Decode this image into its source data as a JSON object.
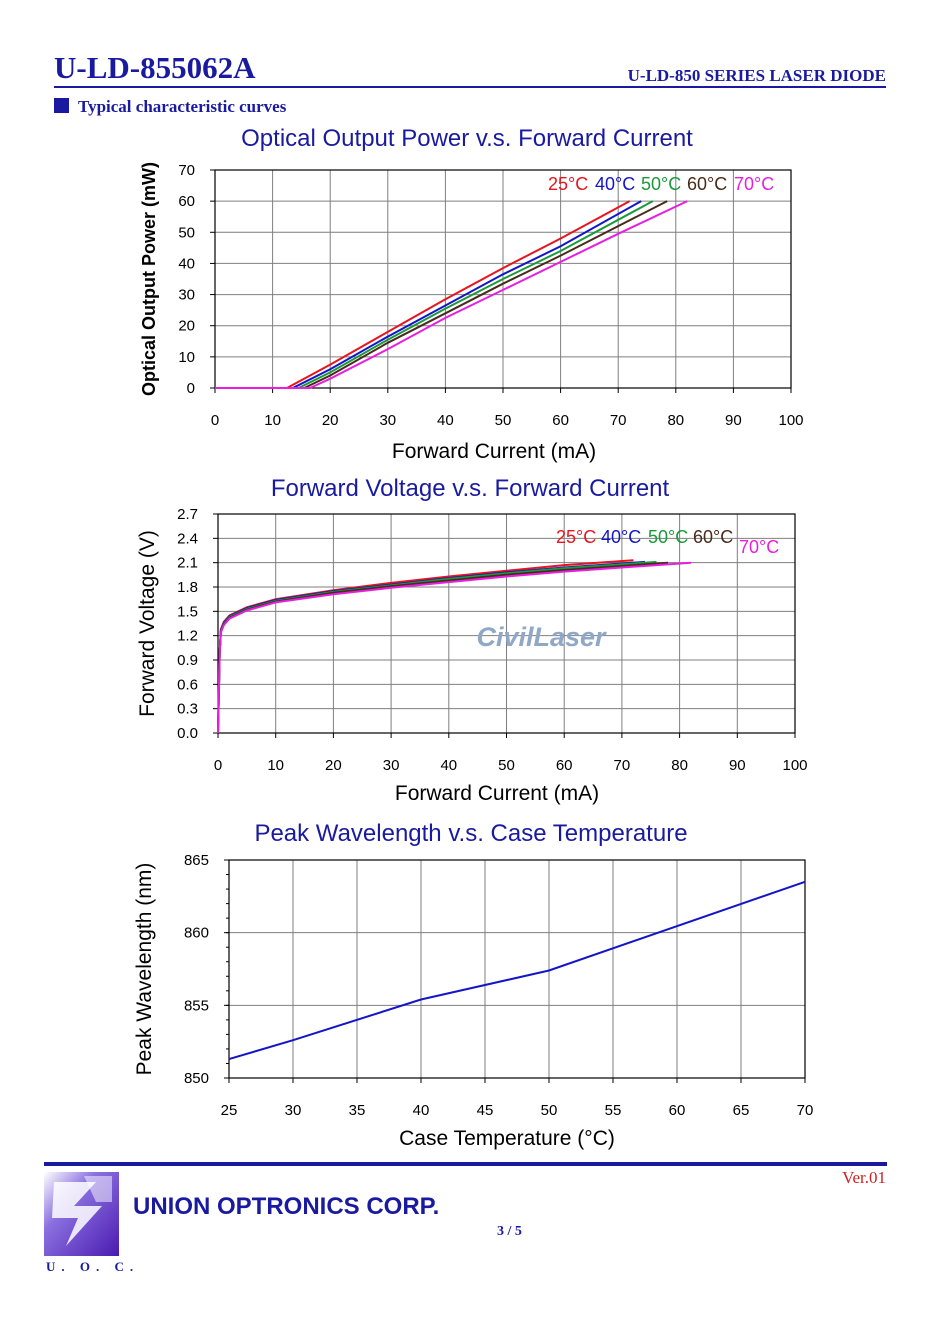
{
  "header": {
    "part_number": "U-LD-855062A",
    "series": "U-LD-850 SERIES LASER DIODE",
    "section_title": "Typical characteristic curves"
  },
  "footer": {
    "logo_text": "U. O. C.",
    "company": "UNION OPTRONICS CORP.",
    "page": "3 / 5",
    "version": "Ver.01"
  },
  "watermark": "CivilLaser",
  "colors": {
    "title": "#1a1aa0",
    "grid": "#7f7f7f"
  },
  "chart_data": [
    {
      "type": "line",
      "title": "Optical Output Power v.s. Forward Current",
      "xlabel": "Forward Current (mA)",
      "ylabel": "Optical Output Power (mW)",
      "xlim": [
        0,
        100
      ],
      "ylim": [
        0,
        70
      ],
      "xticks": [
        0,
        10,
        20,
        30,
        40,
        50,
        60,
        70,
        80,
        90,
        100
      ],
      "yticks": [
        0,
        10,
        20,
        30,
        40,
        50,
        60,
        70
      ],
      "grid": true,
      "legend_position": "top-right, inline",
      "series": [
        {
          "name": "25°C",
          "color": "#e8141e",
          "x": [
            0,
            12.5,
            20,
            30,
            40,
            50,
            60,
            72
          ],
          "y": [
            0,
            0,
            7.5,
            18,
            28.5,
            38.5,
            48,
            60
          ]
        },
        {
          "name": "40°C",
          "color": "#1515c8",
          "x": [
            0,
            13.5,
            20,
            30,
            40,
            50,
            60,
            74
          ],
          "y": [
            0,
            0,
            6,
            16.5,
            26.5,
            36.5,
            45.5,
            60
          ]
        },
        {
          "name": "50°C",
          "color": "#1a9a3a",
          "x": [
            0,
            14.5,
            20,
            30,
            40,
            50,
            60,
            76
          ],
          "y": [
            0,
            0,
            5,
            15.5,
            25.5,
            35,
            44,
            60
          ]
        },
        {
          "name": "60°C",
          "color": "#4a2a18",
          "x": [
            0,
            15.5,
            20,
            30,
            40,
            50,
            60,
            78.5
          ],
          "y": [
            0,
            0,
            4,
            14.5,
            24,
            33.5,
            42.5,
            60
          ]
        },
        {
          "name": "70°C",
          "color": "#e81ee0",
          "x": [
            0,
            16.5,
            20,
            30,
            40,
            50,
            60,
            70,
            82
          ],
          "y": [
            0,
            0,
            3,
            12.5,
            22.5,
            31.5,
            40.5,
            49.5,
            60
          ]
        }
      ]
    },
    {
      "type": "line",
      "title": "Forward Voltage v.s. Forward Current",
      "xlabel": "Forward Current (mA)",
      "ylabel": "Forward Voltage (V)",
      "xlim": [
        0,
        100
      ],
      "ylim": [
        0,
        2.7
      ],
      "xticks": [
        0,
        10,
        20,
        30,
        40,
        50,
        60,
        70,
        80,
        90,
        100
      ],
      "yticks": [
        0.0,
        0.3,
        0.6,
        0.9,
        1.2,
        1.5,
        1.8,
        2.1,
        2.4,
        2.7
      ],
      "ytick_decimals": 1,
      "grid": true,
      "legend_position": "top-right, inline",
      "series": [
        {
          "name": "25°C",
          "color": "#e8141e",
          "x": [
            0,
            0.3,
            0.5,
            1,
            2,
            5,
            10,
            20,
            30,
            40,
            50,
            60,
            72
          ],
          "y": [
            0,
            1.0,
            1.28,
            1.37,
            1.45,
            1.55,
            1.65,
            1.76,
            1.85,
            1.93,
            2.0,
            2.07,
            2.13
          ]
        },
        {
          "name": "40°C",
          "color": "#1515c8",
          "x": [
            0,
            0.3,
            0.5,
            1,
            2,
            5,
            10,
            20,
            30,
            40,
            50,
            60,
            74
          ],
          "y": [
            0,
            1.0,
            1.27,
            1.36,
            1.44,
            1.54,
            1.64,
            1.75,
            1.83,
            1.91,
            1.98,
            2.04,
            2.11
          ]
        },
        {
          "name": "50°C",
          "color": "#1a9a3a",
          "x": [
            0,
            0.3,
            0.5,
            1,
            2,
            5,
            10,
            20,
            30,
            40,
            50,
            60,
            76
          ],
          "y": [
            0,
            1.0,
            1.26,
            1.35,
            1.43,
            1.53,
            1.63,
            1.74,
            1.82,
            1.9,
            1.97,
            2.03,
            2.11
          ]
        },
        {
          "name": "60°C",
          "color": "#4a2a18",
          "x": [
            0,
            0.3,
            0.5,
            1,
            2,
            5,
            10,
            20,
            30,
            40,
            50,
            60,
            78
          ],
          "y": [
            0,
            1.0,
            1.25,
            1.34,
            1.42,
            1.52,
            1.62,
            1.73,
            1.81,
            1.88,
            1.95,
            2.01,
            2.1
          ]
        },
        {
          "name": "70°C",
          "color": "#e81ee0",
          "x": [
            0,
            0.3,
            0.5,
            1,
            2,
            5,
            10,
            20,
            30,
            40,
            50,
            60,
            70,
            82
          ],
          "y": [
            0,
            1.0,
            1.24,
            1.33,
            1.41,
            1.51,
            1.61,
            1.71,
            1.79,
            1.86,
            1.93,
            1.99,
            2.04,
            2.1
          ]
        }
      ]
    },
    {
      "type": "line",
      "title": "Peak Wavelength v.s. Case Temperature",
      "xlabel": "Case Temperature (°C)",
      "ylabel": "Peak Wavelength (nm)",
      "xlim": [
        25,
        70
      ],
      "ylim": [
        850,
        865
      ],
      "xticks": [
        25,
        30,
        35,
        40,
        45,
        50,
        55,
        60,
        65,
        70
      ],
      "yticks": [
        850,
        855,
        860,
        865
      ],
      "grid": true,
      "series": [
        {
          "color": "#1515c8",
          "x": [
            25,
            30,
            40,
            50,
            70
          ],
          "y": [
            851.3,
            852.6,
            855.4,
            857.4,
            863.5
          ]
        }
      ]
    }
  ]
}
